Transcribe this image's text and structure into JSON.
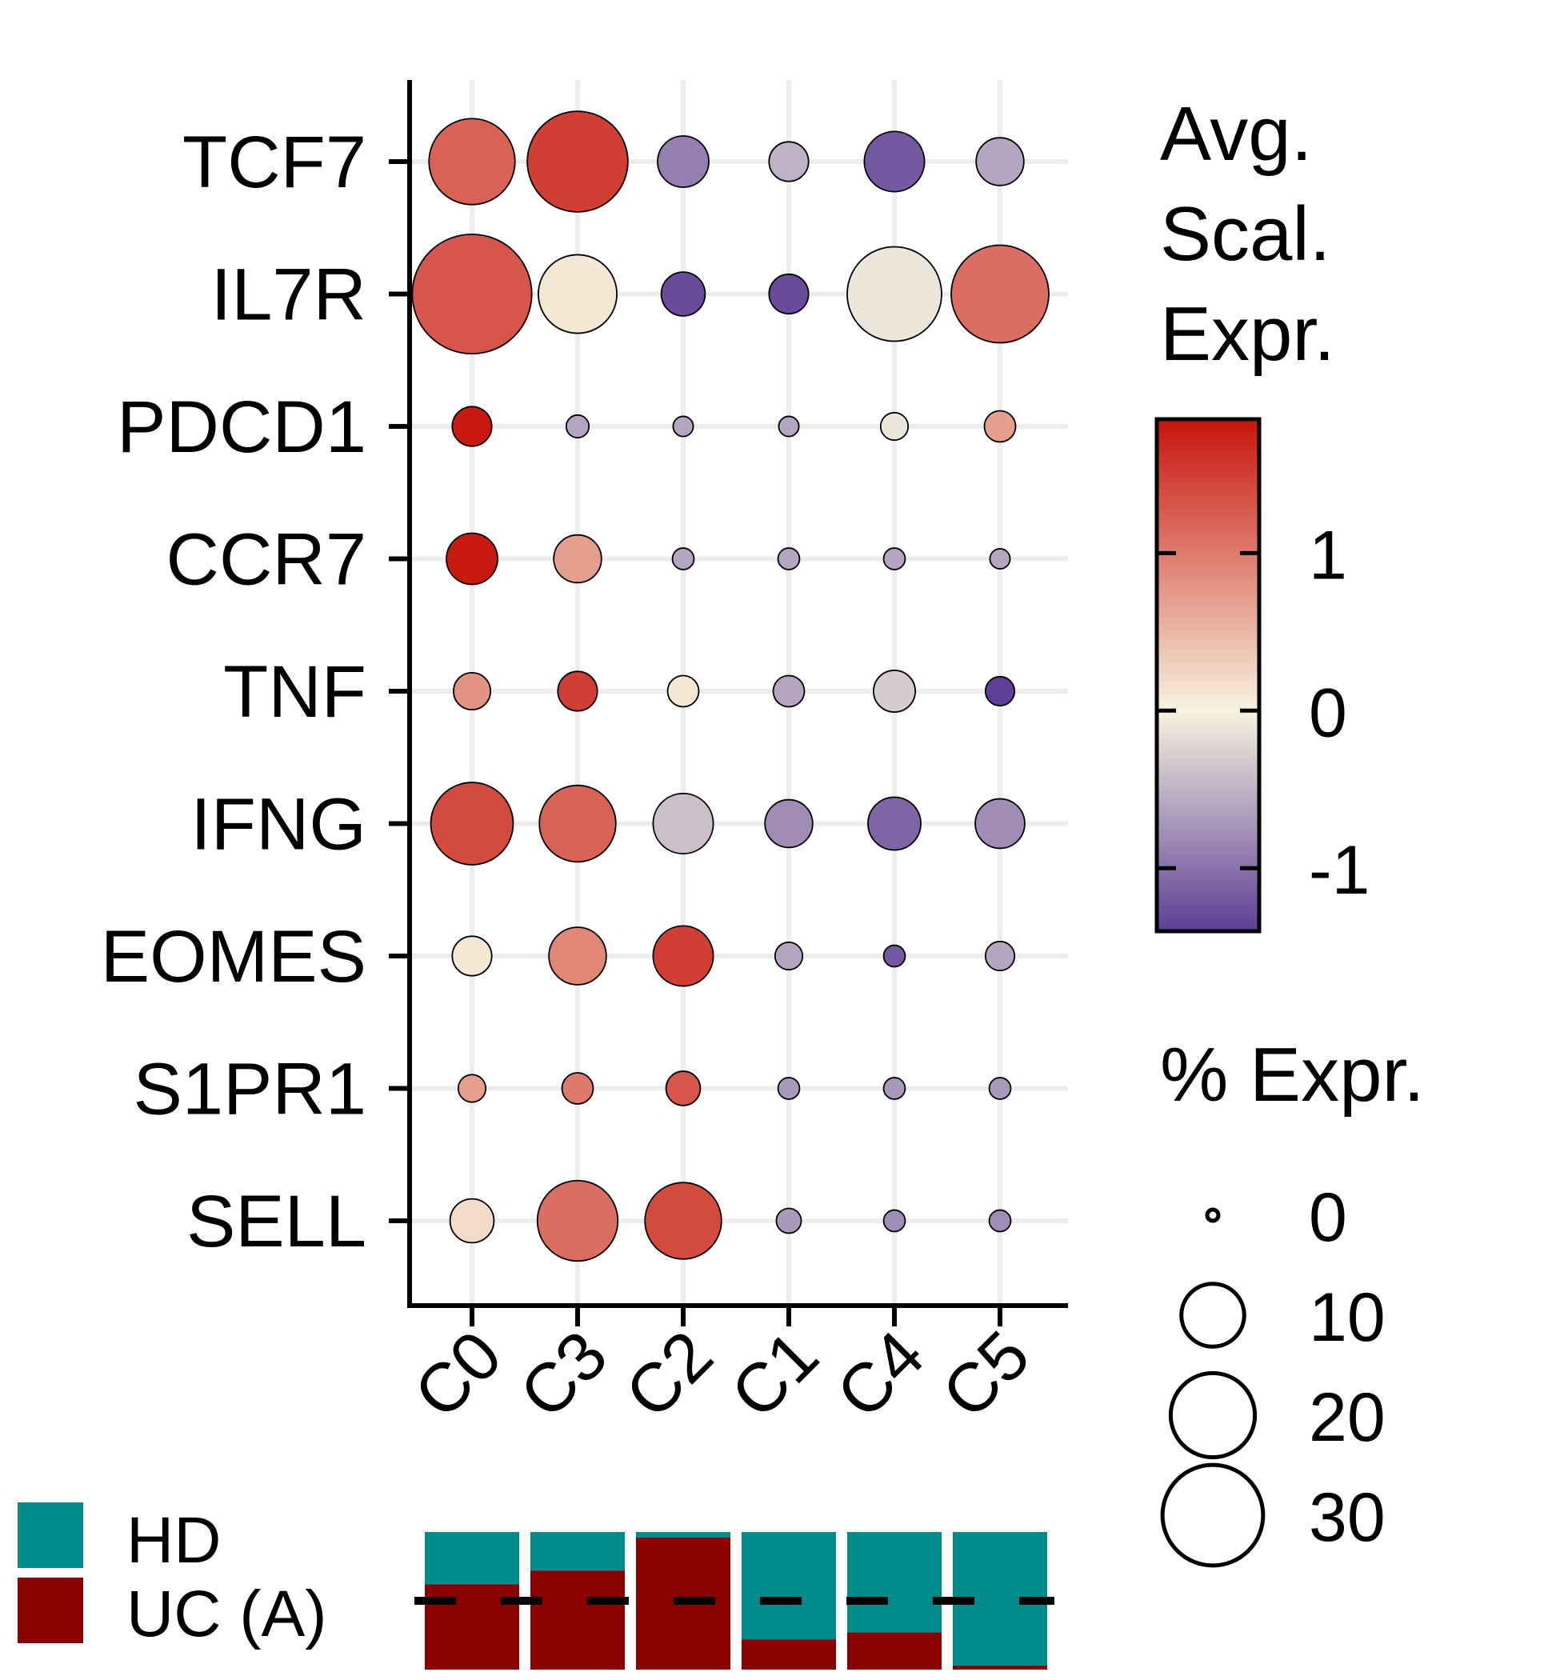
{
  "chart_data": {
    "type": "dot",
    "genes": [
      "TCF7",
      "IL7R",
      "PDCD1",
      "CCR7",
      "TNF",
      "IFNG",
      "EOMES",
      "S1PR1",
      "SELL"
    ],
    "clusters": [
      "C0",
      "C3",
      "C2",
      "C1",
      "C4",
      "C5"
    ],
    "avg_scaled_expression": [
      [
        1.2,
        1.5,
        -0.9,
        -0.5,
        -1.2,
        -0.6
      ],
      [
        1.3,
        0.1,
        -1.3,
        -1.3,
        -0.1,
        1.1
      ],
      [
        1.8,
        -0.6,
        -0.6,
        -0.6,
        -0.1,
        0.7
      ],
      [
        1.8,
        0.7,
        -0.6,
        -0.6,
        -0.6,
        -0.6
      ],
      [
        0.8,
        1.5,
        0.1,
        -0.6,
        -0.3,
        -1.4
      ],
      [
        1.4,
        1.2,
        -0.4,
        -0.8,
        -1.1,
        -0.8
      ],
      [
        0.1,
        0.9,
        1.5,
        -0.6,
        -1.2,
        -0.6
      ],
      [
        0.7,
        1.0,
        1.3,
        -0.7,
        -0.7,
        -0.7
      ],
      [
        0.2,
        1.1,
        1.4,
        -0.7,
        -0.8,
        -0.8
      ]
    ],
    "pct_expressed": [
      [
        21,
        30,
        6,
        3,
        9,
        5
      ],
      [
        44,
        17,
        4,
        3,
        26,
        28
      ],
      [
        3,
        0.5,
        0.3,
        0.3,
        1,
        1.5
      ],
      [
        6,
        5,
        0.4,
        0.4,
        0.4,
        0.3
      ],
      [
        2.5,
        3,
        1.5,
        1.5,
        3.5,
        1.2
      ],
      [
        19,
        16,
        9,
        5,
        6.5,
        5.5
      ],
      [
        3,
        8,
        9,
        1,
        0.4,
        1.2
      ],
      [
        1,
        1.5,
        2,
        0.4,
        0.4,
        0.4
      ],
      [
        4,
        18,
        16,
        0.7,
        0.4,
        0.4
      ]
    ],
    "color_legend": {
      "title": "Avg. Scal. Expr.",
      "ticks": [
        "1",
        "0",
        "-1"
      ],
      "tick_values": [
        1,
        0,
        -1
      ],
      "range": [
        -1.4,
        1.85
      ],
      "colors": {
        "high": "#c8140c",
        "mid": "#f7f3df",
        "low": "#5e3e96"
      }
    },
    "size_legend": {
      "title": "% Expr.",
      "ticks": [
        "0",
        "10",
        "20",
        "30"
      ],
      "tick_values": [
        0,
        10,
        20,
        30
      ]
    },
    "composition": {
      "groups": [
        {
          "label": "HD",
          "color": "#008b8b"
        },
        {
          "label": "UC (A)",
          "color": "#8b0000"
        }
      ],
      "uc_fraction": [
        0.62,
        0.72,
        0.96,
        0.22,
        0.27,
        0.03
      ],
      "reference_line": 0.5
    },
    "grid": true
  }
}
